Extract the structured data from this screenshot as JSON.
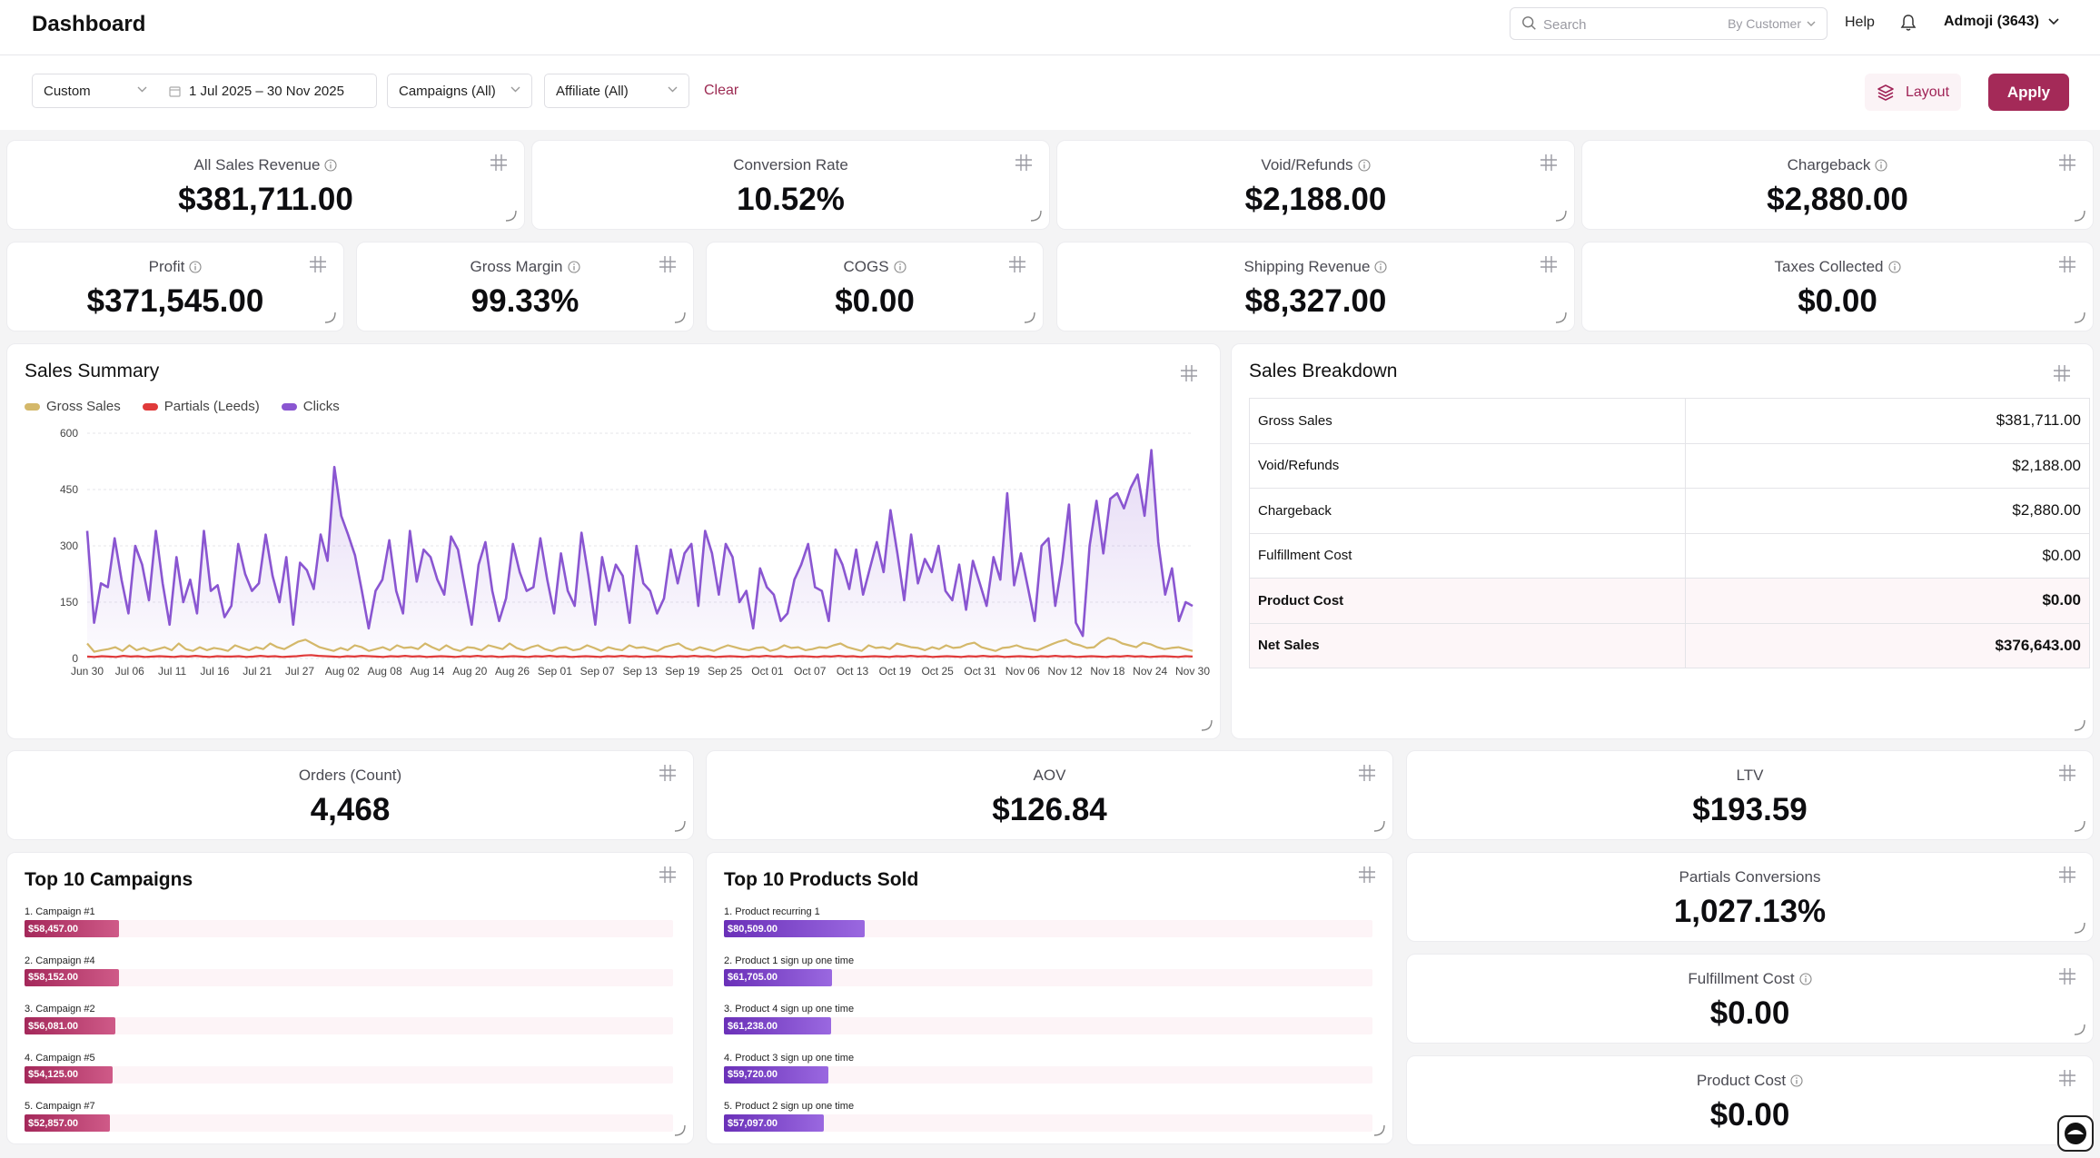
{
  "header": {
    "title": "Dashboard",
    "search_placeholder": "Search",
    "search_scope": "By Customer",
    "help_label": "Help",
    "account_label": "Admoji (3643)"
  },
  "filters": {
    "period": "Custom",
    "date_range": "1 Jul 2025 – 30 Nov 2025",
    "campaigns": "Campaigns (All)",
    "affiliate": "Affiliate (All)",
    "clear_label": "Clear",
    "layout_label": "Layout",
    "apply_label": "Apply"
  },
  "kpis_row1": [
    {
      "label": "All Sales Revenue",
      "value": "$381,711.00",
      "info": true
    },
    {
      "label": "Conversion Rate",
      "value": "10.52%",
      "info": false
    },
    {
      "label": "Void/Refunds",
      "value": "$2,188.00",
      "info": true
    },
    {
      "label": "Chargeback",
      "value": "$2,880.00",
      "info": true
    }
  ],
  "kpis_row2": [
    {
      "label": "Profit",
      "value": "$371,545.00",
      "info": true
    },
    {
      "label": "Gross Margin",
      "value": "99.33%",
      "info": true
    },
    {
      "label": "COGS",
      "value": "$0.00",
      "info": true
    },
    {
      "label": "Shipping Revenue",
      "value": "$8,327.00",
      "info": true
    },
    {
      "label": "Taxes Collected",
      "value": "$0.00",
      "info": true
    }
  ],
  "kpis_row3": [
    {
      "label": "Orders (Count)",
      "value": "4,468",
      "info": false
    },
    {
      "label": "AOV",
      "value": "$126.84",
      "info": false
    },
    {
      "label": "LTV",
      "value": "$193.59",
      "info": false
    }
  ],
  "kpis_side": [
    {
      "label": "Partials Conversions",
      "value": "1,027.13%",
      "info": false
    },
    {
      "label": "Fulfillment Cost",
      "value": "$0.00",
      "info": true
    },
    {
      "label": "Product Cost",
      "value": "$0.00",
      "info": true
    }
  ],
  "sales_summary": {
    "title": "Sales Summary"
  },
  "sales_breakdown": {
    "title": "Sales Breakdown",
    "rows": [
      {
        "label": "Gross Sales",
        "value": "$381,711.00",
        "emphasis": false
      },
      {
        "label": "Void/Refunds",
        "value": "$2,188.00",
        "emphasis": false
      },
      {
        "label": "Chargeback",
        "value": "$2,880.00",
        "emphasis": false
      },
      {
        "label": "Fulfillment Cost",
        "value": "$0.00",
        "emphasis": false
      },
      {
        "label": "Product Cost",
        "value": "$0.00",
        "emphasis": true
      },
      {
        "label": "Net Sales",
        "value": "$376,643.00",
        "emphasis": true
      }
    ]
  },
  "top_campaigns": {
    "title": "Top 10 Campaigns",
    "max": 400000,
    "items": [
      {
        "label": "1. Campaign #1",
        "value": 58457,
        "display": "$58,457.00"
      },
      {
        "label": "2. Campaign #4",
        "value": 58152,
        "display": "$58,152.00"
      },
      {
        "label": "3. Campaign #2",
        "value": 56081,
        "display": "$56,081.00"
      },
      {
        "label": "4. Campaign #5",
        "value": 54125,
        "display": "$54,125.00"
      },
      {
        "label": "5. Campaign #7",
        "value": 52857,
        "display": "$52,857.00"
      }
    ]
  },
  "top_products": {
    "title": "Top 10 Products Sold",
    "max": 370000,
    "items": [
      {
        "label": "1. Product recurring 1",
        "value": 80509,
        "display": "$80,509.00"
      },
      {
        "label": "2. Product 1 sign up one time",
        "value": 61705,
        "display": "$61,705.00"
      },
      {
        "label": "3. Product 4 sign up one time",
        "value": 61238,
        "display": "$61,238.00"
      },
      {
        "label": "4. Product 3 sign up one time",
        "value": 59720,
        "display": "$59,720.00"
      },
      {
        "label": "5. Product 2 sign up one time",
        "value": 57097,
        "display": "$57,097.00"
      }
    ]
  },
  "colors": {
    "accent": "#a42a58",
    "gross_sales": "#d4b86a",
    "partials": "#e03a3a",
    "clicks": "#8a56d1",
    "campaign_bar": "#b83a6b",
    "product_bar": "#7a3fc8"
  },
  "chart_data": {
    "type": "line",
    "title": "Sales Summary",
    "xlabel": "",
    "ylabel": "",
    "ylim": [
      0,
      600
    ],
    "yticks": [
      0,
      150,
      300,
      450,
      600
    ],
    "x_start": "2025-06-30",
    "x_step_days": 1,
    "xticks": [
      "Jun 30",
      "Jul 06",
      "Jul 11",
      "Jul 16",
      "Jul 21",
      "Jul 27",
      "Aug 02",
      "Aug 08",
      "Aug 14",
      "Aug 20",
      "Aug 26",
      "Sep 01",
      "Sep 07",
      "Sep 13",
      "Sep 19",
      "Sep 25",
      "Oct 01",
      "Oct 07",
      "Oct 13",
      "Oct 19",
      "Oct 25",
      "Oct 31",
      "Nov 06",
      "Nov 12",
      "Nov 18",
      "Nov 24",
      "Nov 30"
    ],
    "legend_position": "top-left",
    "grid": true,
    "series": [
      {
        "name": "Gross Sales",
        "values": [
          40,
          18,
          22,
          25,
          30,
          20,
          35,
          22,
          28,
          20,
          25,
          30,
          22,
          40,
          25,
          20,
          30,
          22,
          28,
          25,
          20,
          35,
          28,
          22,
          30,
          25,
          40,
          30,
          25,
          35,
          45,
          50,
          40,
          30,
          25,
          20,
          28,
          22,
          35,
          30,
          20,
          25,
          30,
          22,
          35,
          28,
          30,
          25,
          40,
          30,
          22,
          35,
          25,
          20,
          30,
          28,
          22,
          35,
          30,
          25,
          40,
          28,
          22,
          30,
          35,
          25,
          20,
          28,
          30,
          22,
          25,
          35,
          28,
          20,
          30,
          25,
          22,
          35,
          28,
          30,
          25,
          20,
          30,
          35,
          40,
          28,
          22,
          30,
          25,
          20,
          28,
          35,
          30,
          25,
          22,
          28,
          30,
          20,
          25,
          35,
          28,
          30,
          22,
          25,
          30,
          28,
          35,
          40,
          30,
          25,
          20,
          35,
          28,
          30,
          25,
          40,
          35,
          30,
          28,
          22,
          30,
          25,
          35,
          28,
          30,
          38,
          42,
          30,
          25,
          20,
          28,
          30,
          35,
          28,
          25,
          22,
          30,
          38,
          45,
          50,
          40,
          35,
          28,
          30,
          45,
          55,
          50,
          40,
          35,
          30,
          42,
          38,
          30,
          25,
          28,
          30,
          25,
          20
        ]
      },
      {
        "name": "Partials (Leeds)",
        "values": [
          5,
          4,
          6,
          5,
          4,
          7,
          5,
          6,
          4,
          5,
          6,
          5,
          4,
          6,
          5,
          7,
          5,
          4,
          6,
          5,
          5,
          6,
          4,
          5,
          7,
          5,
          6,
          4,
          5,
          6,
          8,
          9,
          7,
          6,
          5,
          4,
          6,
          5,
          7,
          6,
          5,
          4,
          6,
          5,
          7,
          5,
          6,
          4,
          5,
          6,
          5,
          4,
          6,
          5,
          7,
          5,
          6,
          4,
          5,
          6,
          5,
          4,
          6,
          5,
          7,
          5,
          6,
          4,
          5,
          6,
          5,
          4,
          6,
          5,
          7,
          5,
          6,
          4,
          5,
          6,
          5,
          4,
          6,
          5,
          7,
          5,
          6,
          4,
          5,
          6,
          5,
          4,
          6,
          5,
          7,
          5,
          6,
          4,
          5,
          6,
          5,
          4,
          6,
          5,
          7,
          5,
          6,
          4,
          5,
          6,
          5,
          4,
          6,
          5,
          7,
          5,
          6,
          4,
          5,
          6,
          5,
          4,
          6,
          5,
          7,
          5,
          6,
          4,
          5,
          6,
          5,
          4,
          6,
          5,
          7,
          5,
          6,
          4,
          5,
          6,
          5,
          4,
          6,
          5,
          7,
          5,
          6,
          4,
          5,
          6,
          5,
          4,
          6,
          5
        ]
      },
      {
        "name": "Clicks",
        "values": [
          340,
          95,
          200,
          190,
          320,
          210,
          120,
          300,
          250,
          155,
          340,
          200,
          90,
          270,
          150,
          210,
          120,
          340,
          180,
          195,
          110,
          140,
          305,
          225,
          180,
          200,
          330,
          220,
          150,
          270,
          90,
          255,
          235,
          185,
          330,
          260,
          510,
          380,
          330,
          275,
          180,
          80,
          180,
          210,
          315,
          180,
          120,
          340,
          205,
          290,
          270,
          210,
          170,
          325,
          290,
          190,
          90,
          250,
          310,
          180,
          100,
          160,
          305,
          230,
          180,
          190,
          320,
          210,
          120,
          280,
          180,
          140,
          335,
          220,
          90,
          270,
          180,
          250,
          220,
          95,
          300,
          200,
          180,
          120,
          160,
          290,
          200,
          280,
          305,
          140,
          340,
          280,
          170,
          305,
          270,
          150,
          180,
          80,
          240,
          190,
          170,
          100,
          120,
          210,
          250,
          305,
          190,
          180,
          100,
          290,
          250,
          185,
          290,
          170,
          240,
          310,
          230,
          395,
          280,
          155,
          330,
          200,
          265,
          230,
          300,
          180,
          155,
          250,
          130,
          260,
          200,
          140,
          270,
          210,
          440,
          195,
          280,
          190,
          100,
          300,
          320,
          140,
          255,
          410,
          95,
          60,
          300,
          420,
          280,
          425,
          440,
          400,
          455,
          490,
          380,
          555,
          310,
          170,
          240,
          100,
          150,
          140
        ]
      }
    ]
  }
}
